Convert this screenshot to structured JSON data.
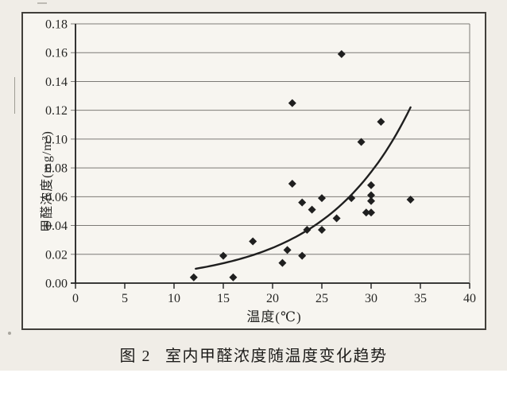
{
  "caption": {
    "number": "图 2",
    "title": "室内甲醛浓度随温度变化趋势"
  },
  "colors": {
    "paper": "#f0ede7",
    "plot_bg": "#f7f5f0",
    "ink": "#1f1f1f",
    "grid": "#7c7a76",
    "frame": "#413f3b",
    "text": "#262624"
  },
  "chart_data": {
    "type": "scatter",
    "title": "图 2 室内甲醛浓度随温度变化趋势",
    "xlabel": "温度(℃)",
    "ylabel": "甲醛浓度(mg/m³)",
    "xlim": [
      0,
      40
    ],
    "ylim": [
      0,
      0.18
    ],
    "x_ticks": [
      "0",
      "5",
      "10",
      "15",
      "20",
      "25",
      "30",
      "35",
      "40"
    ],
    "y_ticks": [
      "0.00",
      "0.02",
      "0.04",
      "0.06",
      "0.08",
      "0.10",
      "0.12",
      "0.14",
      "0.16",
      "0.18"
    ],
    "grid": "horizontal-only",
    "legend": "none",
    "marker": "diamond",
    "points": [
      [
        12,
        0.004
      ],
      [
        15,
        0.019
      ],
      [
        16,
        0.004
      ],
      [
        18,
        0.029
      ],
      [
        21,
        0.014
      ],
      [
        21.5,
        0.023
      ],
      [
        22,
        0.069
      ],
      [
        22,
        0.125
      ],
      [
        23,
        0.019
      ],
      [
        23,
        0.056
      ],
      [
        23.5,
        0.037
      ],
      [
        24,
        0.051
      ],
      [
        25,
        0.037
      ],
      [
        25,
        0.059
      ],
      [
        26.5,
        0.045
      ],
      [
        27,
        0.159
      ],
      [
        28,
        0.059
      ],
      [
        29,
        0.098
      ],
      [
        29.5,
        0.049
      ],
      [
        30,
        0.049
      ],
      [
        30,
        0.057
      ],
      [
        30,
        0.061
      ],
      [
        30,
        0.068
      ],
      [
        31,
        0.112
      ],
      [
        34,
        0.058
      ]
    ],
    "trendline": {
      "type": "exponential",
      "equation_a": 0.00247,
      "equation_b": 0.1147,
      "x_start": 12.2,
      "x_end": 34
    }
  }
}
